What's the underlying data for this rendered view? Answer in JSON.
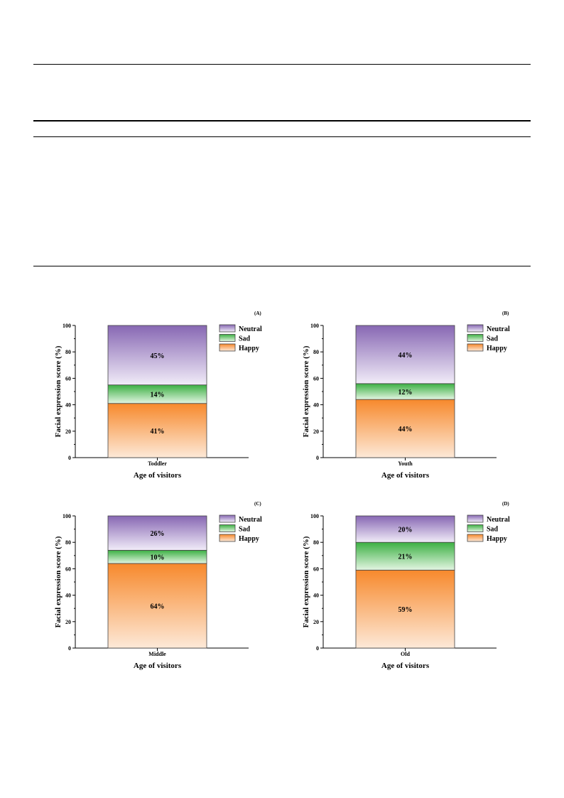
{
  "chart_data": [
    {
      "type": "bar",
      "stacked": true,
      "panel": "(A)",
      "categories": [
        "Toddler"
      ],
      "xlabel": "Age of visitors",
      "ylabel": "Facial expression score (%)",
      "ylim": [
        0,
        100
      ],
      "yticks": [
        0,
        20,
        40,
        60,
        80,
        100
      ],
      "series": [
        {
          "name": "Happy",
          "values": [
            41
          ],
          "label": "41%"
        },
        {
          "name": "Sad",
          "values": [
            14
          ],
          "label": "14%"
        },
        {
          "name": "Neutral",
          "values": [
            45
          ],
          "label": "45%"
        }
      ],
      "legend": [
        "Neutral",
        "Sad",
        "Happy"
      ],
      "legend_position": "top-right"
    },
    {
      "type": "bar",
      "stacked": true,
      "panel": "(B)",
      "categories": [
        "Youth"
      ],
      "xlabel": "Age of visitors",
      "ylabel": "Facial expression score (%)",
      "ylim": [
        0,
        100
      ],
      "yticks": [
        0,
        20,
        40,
        60,
        80,
        100
      ],
      "series": [
        {
          "name": "Happy",
          "values": [
            44
          ],
          "label": "44%"
        },
        {
          "name": "Sad",
          "values": [
            12
          ],
          "label": "12%"
        },
        {
          "name": "Neutral",
          "values": [
            44
          ],
          "label": "44%"
        }
      ],
      "legend": [
        "Neutral",
        "Sad",
        "Happy"
      ],
      "legend_position": "top-right"
    },
    {
      "type": "bar",
      "stacked": true,
      "panel": "(C)",
      "categories": [
        "Middle"
      ],
      "xlabel": "Age of visitors",
      "ylabel": "Facial expression score (%)",
      "ylim": [
        0,
        100
      ],
      "yticks": [
        0,
        20,
        40,
        60,
        80,
        100
      ],
      "series": [
        {
          "name": "Happy",
          "values": [
            64
          ],
          "label": "64%"
        },
        {
          "name": "Sad",
          "values": [
            10
          ],
          "label": "10%"
        },
        {
          "name": "Neutral",
          "values": [
            26
          ],
          "label": "26%"
        }
      ],
      "legend": [
        "Neutral",
        "Sad",
        "Happy"
      ],
      "legend_position": "top-right"
    },
    {
      "type": "bar",
      "stacked": true,
      "panel": "(D)",
      "categories": [
        "Old"
      ],
      "xlabel": "Age of visitors",
      "ylabel": "Facial expression score (%)",
      "ylim": [
        0,
        100
      ],
      "yticks": [
        0,
        20,
        40,
        60,
        80,
        100
      ],
      "series": [
        {
          "name": "Happy",
          "values": [
            59
          ],
          "label": "59%"
        },
        {
          "name": "Sad",
          "values": [
            21
          ],
          "label": "21%"
        },
        {
          "name": "Neutral",
          "values": [
            20
          ],
          "label": "20%"
        }
      ],
      "legend": [
        "Neutral",
        "Sad",
        "Happy"
      ],
      "legend_position": "top-right"
    }
  ],
  "colors": {
    "Happy": {
      "top": "#f7892c",
      "bottom": "#fde9d8"
    },
    "Sad": {
      "top": "#3cb043",
      "bottom": "#e3f5e2"
    },
    "Neutral": {
      "top": "#8767b3",
      "bottom": "#f1ecf8"
    }
  }
}
